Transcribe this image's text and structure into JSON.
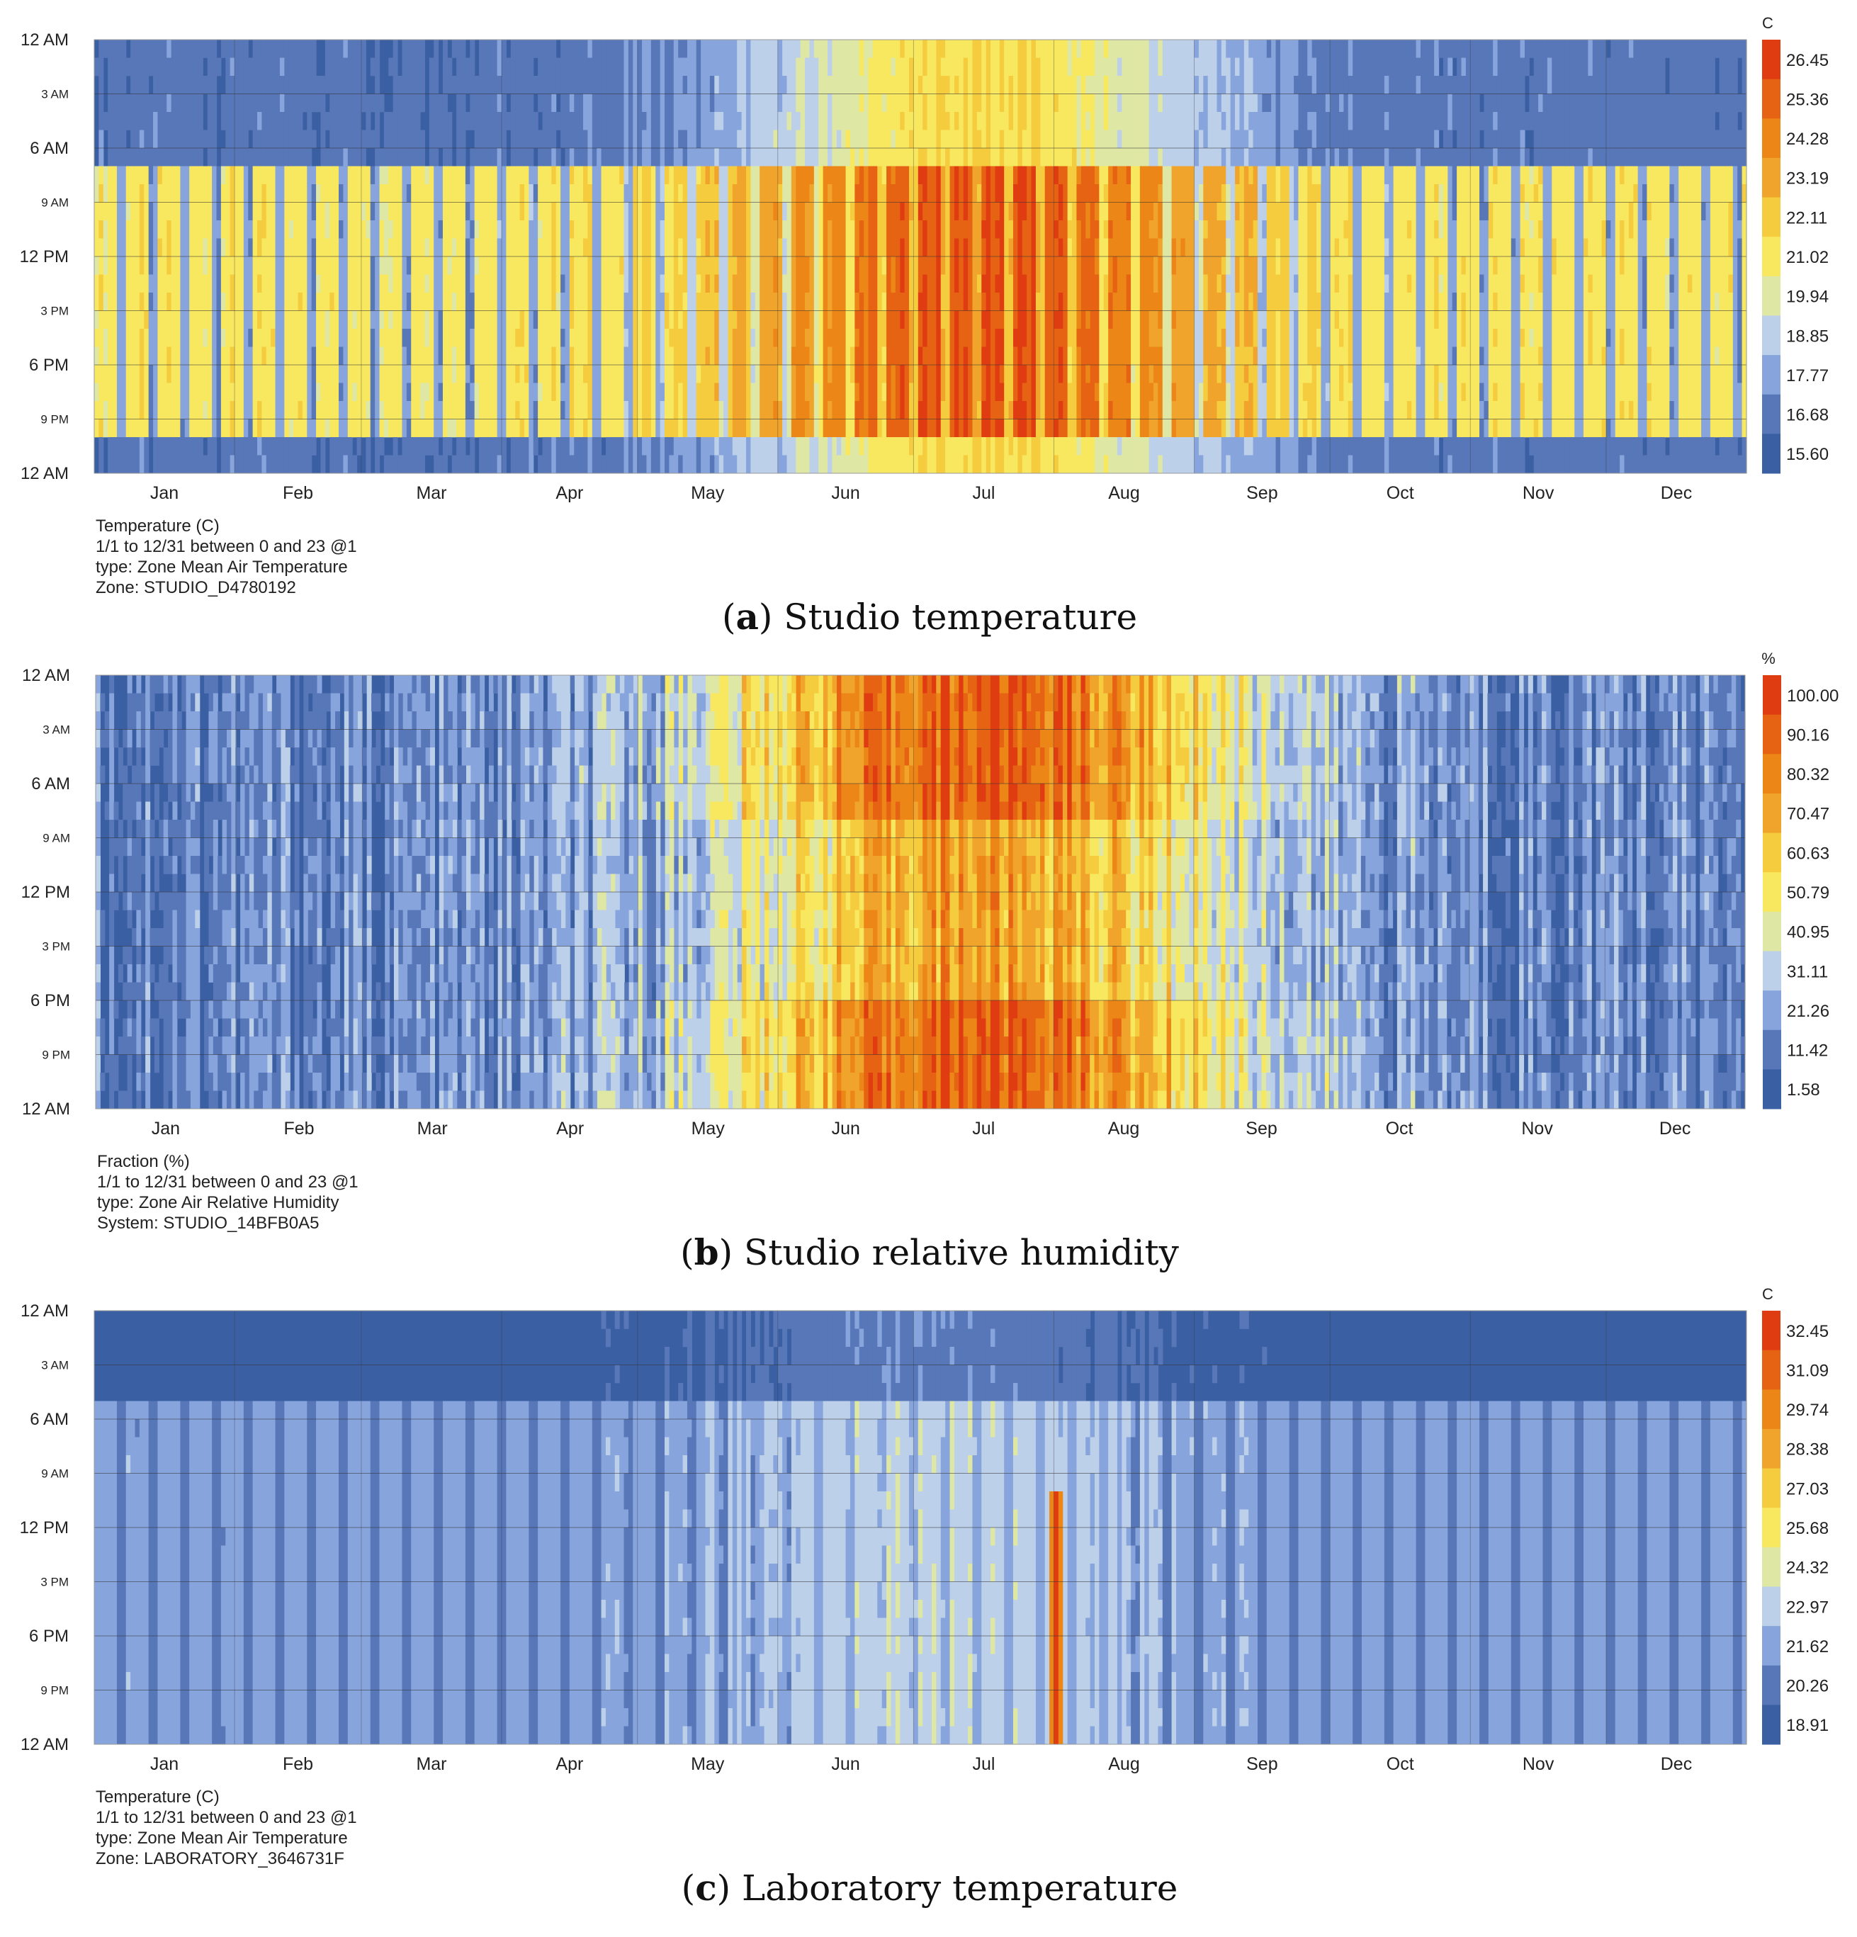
{
  "figure": {
    "panels": [
      {
        "caption_letter": "a",
        "caption_text": " Studio temperature",
        "unit_label": "C",
        "meta_lines": [
          "Temperature (C)",
          "1/1 to 12/31 between 0 and 23 @1",
          "type: Zone Mean Air Temperature",
          "Zone: STUDIO_D4780192"
        ]
      },
      {
        "caption_letter": "b",
        "caption_text": " Studio relative humidity",
        "unit_label": "%",
        "meta_lines": [
          "Fraction (%)",
          "1/1 to 12/31 between 0 and 23 @1",
          "type: Zone Air Relative Humidity",
          "System: STUDIO_14BFB0A5"
        ]
      },
      {
        "caption_letter": "c",
        "caption_text": " Laboratory temperature",
        "unit_label": "C",
        "meta_lines": [
          "Temperature (C)",
          "1/1 to 12/31 between 0 and 23 @1",
          "type: Zone Mean Air Temperature",
          "Zone: LABORATORY_3646731F"
        ]
      }
    ]
  },
  "chart_data": [
    {
      "type": "heatmap",
      "title": "Studio temperature",
      "x_unit": "day of year",
      "x_range": [
        1,
        365
      ],
      "month_labels": [
        "Jan",
        "Feb",
        "Mar",
        "Apr",
        "May",
        "Jun",
        "Jul",
        "Aug",
        "Sep",
        "Oct",
        "Nov",
        "Dec"
      ],
      "y_unit": "hour of day",
      "y_range": [
        0,
        24
      ],
      "hour_labels": [
        "12 AM",
        "3 AM",
        "6 AM",
        "9 AM",
        "12 PM",
        "3 PM",
        "6 PM",
        "9 PM",
        "12 AM"
      ],
      "legend_unit": "C",
      "legend_values": [
        "26.45",
        "25.36",
        "24.28",
        "23.19",
        "22.11",
        "21.02",
        "19.94",
        "18.85",
        "17.77",
        "16.68",
        "15.60"
      ],
      "colors": [
        "#3b5fa3",
        "#5777b8",
        "#87a5dc",
        "#bcd0ea",
        "#dfe7a4",
        "#f8e860",
        "#f5cc3e",
        "#f1a42b",
        "#ec8616",
        "#e76314",
        "#e03c12"
      ],
      "pattern": {
        "occupied_hours": [
          7,
          22
        ],
        "night_base": 0.9,
        "weekend_base": 1.8,
        "occupied_base": 5.0,
        "summer_peak_day": 196,
        "summer_width": 50,
        "summer_amplitude": 4.6,
        "noise": 0.5
      }
    },
    {
      "type": "heatmap",
      "title": "Studio relative humidity",
      "x_unit": "day of year",
      "x_range": [
        1,
        365
      ],
      "month_labels": [
        "Jan",
        "Feb",
        "Mar",
        "Apr",
        "May",
        "Jun",
        "Jul",
        "Aug",
        "Sep",
        "Oct",
        "Nov",
        "Dec"
      ],
      "y_unit": "hour of day",
      "y_range": [
        0,
        24
      ],
      "hour_labels": [
        "12 AM",
        "3 AM",
        "6 AM",
        "9 AM",
        "12 PM",
        "3 PM",
        "6 PM",
        "9 PM",
        "12 AM"
      ],
      "legend_unit": "%",
      "legend_values": [
        "100.00",
        "90.16",
        "80.32",
        "70.47",
        "60.63",
        "50.79",
        "40.95",
        "31.11",
        "21.26",
        "11.42",
        "1.58"
      ],
      "colors": [
        "#3b5fa3",
        "#5777b8",
        "#87a5dc",
        "#bcd0ea",
        "#dfe7a4",
        "#f8e860",
        "#f5cc3e",
        "#f1a42b",
        "#ec8616",
        "#e76314",
        "#e03c12"
      ],
      "pattern": {
        "occupied_hours": [
          8,
          18
        ],
        "night_base": 1.2,
        "weekend_base": 1.2,
        "occupied_base": 1.0,
        "summer_peak_day": 196,
        "summer_width": 58,
        "summer_amplitude": 8.0,
        "noise": 1.4
      }
    },
    {
      "type": "heatmap",
      "title": "Laboratory temperature",
      "x_unit": "day of year",
      "x_range": [
        1,
        365
      ],
      "month_labels": [
        "Jan",
        "Feb",
        "Mar",
        "Apr",
        "May",
        "Jun",
        "Jul",
        "Aug",
        "Sep",
        "Oct",
        "Nov",
        "Dec"
      ],
      "y_unit": "hour of day",
      "y_range": [
        0,
        24
      ],
      "hour_labels": [
        "12 AM",
        "3 AM",
        "6 AM",
        "9 AM",
        "12 PM",
        "3 PM",
        "6 PM",
        "9 PM",
        "12 AM"
      ],
      "legend_unit": "C",
      "legend_values": [
        "32.45",
        "31.09",
        "29.74",
        "28.38",
        "27.03",
        "25.68",
        "24.32",
        "22.97",
        "21.62",
        "20.26",
        "18.91"
      ],
      "colors": [
        "#3b5fa3",
        "#5777b8",
        "#87a5dc",
        "#bcd0ea",
        "#dfe7a4",
        "#f8e860",
        "#f5cc3e",
        "#f1a42b",
        "#ec8616",
        "#e76314",
        "#e03c12"
      ],
      "pattern": {
        "occupied_hours": [
          5,
          24
        ],
        "night_base": 0.0,
        "weekend_base": 1.0,
        "occupied_base": 2.0,
        "summer_peak_day": 185,
        "summer_width": 45,
        "summer_amplitude": 1.3,
        "noise": 0.35,
        "spike_day": 212,
        "spike_value": 10
      }
    }
  ]
}
